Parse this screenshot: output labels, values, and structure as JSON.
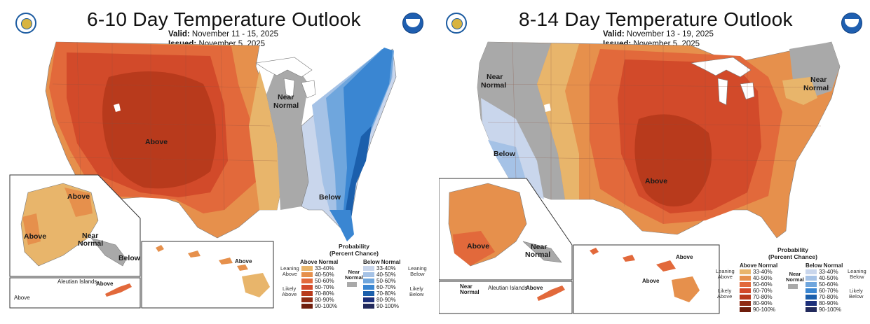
{
  "panels": [
    {
      "title": "6-10 Day Temperature Outlook",
      "valid_label": "Valid:",
      "valid_value": "November 11 - 15, 2025",
      "issued_label": "Issued:",
      "issued_value": "November 5, 2025",
      "labels": {
        "above_main": "Above",
        "near_normal_1": "Near",
        "near_normal_2": "Normal",
        "below_main": "Below",
        "ak_above_1": "Above",
        "ak_above_2": "Above",
        "ak_near_1": "Near",
        "ak_near_2": "Normal",
        "ak_below": "Below",
        "aleutian": "Aleutian Islands",
        "aleutian_above_1": "Above",
        "aleutian_above_2": "Above",
        "hi_above": "Above"
      }
    },
    {
      "title": "8-14 Day Temperature Outlook",
      "valid_label": "Valid:",
      "valid_value": "November 13 - 19, 2025",
      "issued_label": "Issued:",
      "issued_value": "November 5, 2025",
      "labels": {
        "near_nw_1": "Near",
        "near_nw_2": "Normal",
        "near_ne_1": "Near",
        "near_ne_2": "Normal",
        "below_main": "Below",
        "above_main": "Above",
        "ak_above": "Above",
        "ak_near_1": "Near",
        "ak_near_2": "Normal",
        "aleutian_near_1": "Near",
        "aleutian_near_2": "Normal",
        "aleutian": "Aleutian Islands",
        "aleutian_above": "Above",
        "hi_above_1": "Above",
        "hi_above_2": "Above"
      }
    }
  ],
  "legend": {
    "title_1": "Probability",
    "title_2": "(Percent Chance)",
    "above_head": "Above Normal",
    "below_head": "Below Normal",
    "near_1": "Near",
    "near_2": "Normal",
    "leaning_above_1": "Leaning",
    "leaning_above_2": "Above",
    "likely_above_1": "Likely",
    "likely_above_2": "Above",
    "leaning_below_1": "Leaning",
    "leaning_below_2": "Below",
    "likely_below_1": "Likely",
    "likely_below_2": "Below",
    "ranges": [
      "33-40%",
      "40-50%",
      "50-60%",
      "60-70%",
      "70-80%",
      "80-90%",
      "90-100%"
    ],
    "above_colors": [
      "#e8b56b",
      "#e6904c",
      "#e2693b",
      "#d24a2a",
      "#b83a1c",
      "#8f2a13",
      "#6e1d0c"
    ],
    "below_colors": [
      "#c9d6ec",
      "#a5c2e6",
      "#6fa6dd",
      "#3a86d2",
      "#1b5fac",
      "#1c2f7a",
      "#222a5c"
    ],
    "near_color": "#a9a9a9"
  }
}
